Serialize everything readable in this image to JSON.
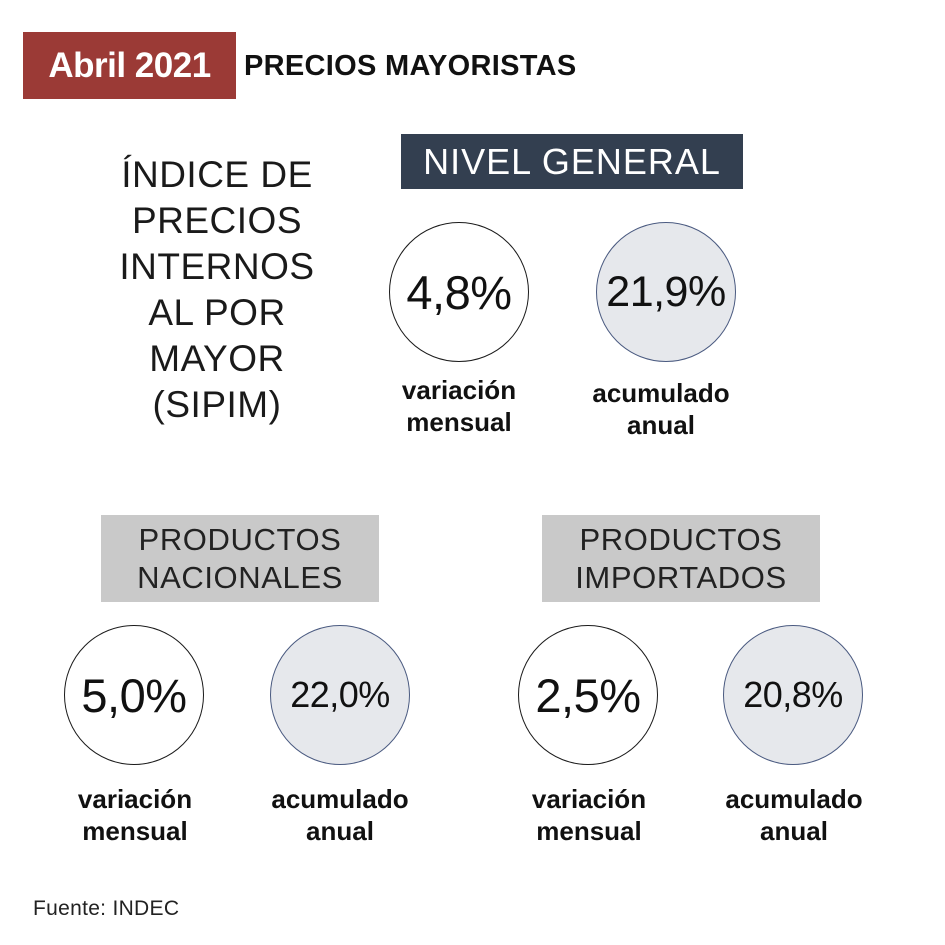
{
  "header": {
    "date_badge": "Abril 2021",
    "title": "PRECIOS MAYORISTAS",
    "badge_color": "#9b3a36"
  },
  "index_title": {
    "lines": [
      "ÍNDICE DE",
      "PRECIOS",
      "INTERNOS",
      "AL POR",
      "MAYOR",
      "(SIPIM)"
    ]
  },
  "nivel_general": {
    "label": "NIVEL GENERAL",
    "label_color": "#333f50",
    "monthly_value": "4,8%",
    "monthly_caption": [
      "variación",
      "mensual"
    ],
    "annual_value": "21,9%",
    "annual_caption": [
      "acumulado",
      "anual"
    ]
  },
  "nacionales": {
    "label_lines": [
      "PRODUCTOS",
      "NACIONALES"
    ],
    "label_color": "#c9c9c9",
    "monthly_value": "5,0%",
    "monthly_caption": [
      "variación",
      "mensual"
    ],
    "annual_value": "22,0%",
    "annual_caption": [
      "acumulado",
      "anual"
    ]
  },
  "importados": {
    "label_lines": [
      "PRODUCTOS",
      "IMPORTADOS"
    ],
    "label_color": "#c9c9c9",
    "monthly_value": "2,5%",
    "monthly_caption": [
      "variación",
      "mensual"
    ],
    "annual_value": "20,8%",
    "annual_caption": [
      "acumulado",
      "anual"
    ]
  },
  "source": "Fuente: INDEC"
}
